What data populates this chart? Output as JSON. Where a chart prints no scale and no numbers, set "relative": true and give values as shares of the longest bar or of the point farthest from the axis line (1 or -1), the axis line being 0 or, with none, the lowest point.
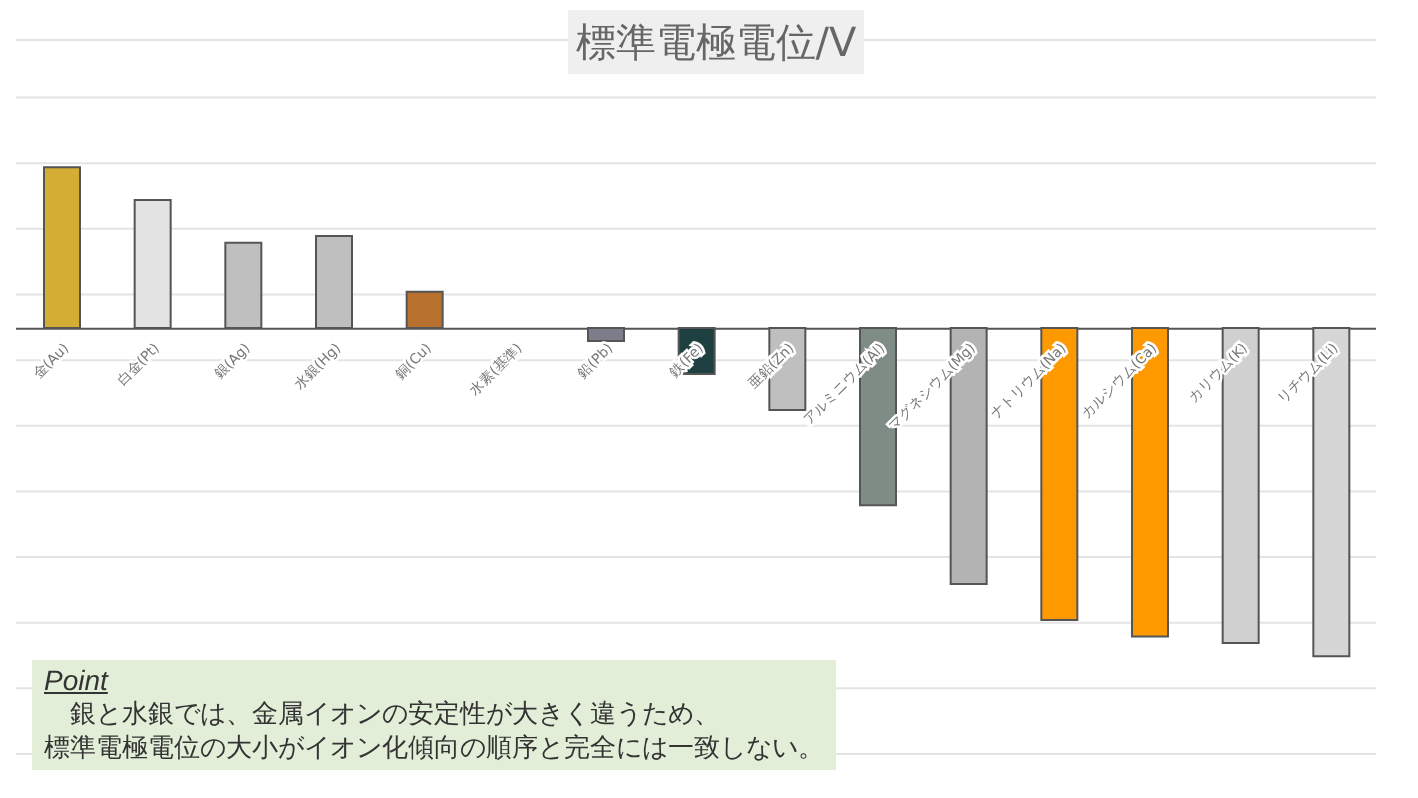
{
  "chart_data": {
    "type": "bar",
    "title": "標準電極電位/V",
    "relative": true,
    "grid": "y",
    "categories": [
      "金(Au)",
      "白金(Pt)",
      "銀(Ag)",
      "水銀(Hg)",
      "銅(Cu)",
      "水素(基準)",
      "鉛(Pb)",
      "鉄(Fe)",
      "亜鉛(Zn)",
      "アルミニウム(Al)",
      "マグネシウム(Mg)",
      "ナトリウム(Na)",
      "カルシウム(Ca)",
      "カリウム(K)",
      "リチウム(Li)"
    ],
    "values": [
      0.49,
      0.39,
      0.26,
      0.28,
      0.11,
      0,
      -0.04,
      -0.14,
      -0.25,
      -0.54,
      -0.78,
      -0.89,
      -0.94,
      -0.96,
      -1
    ],
    "colors": [
      "#d4ad35",
      "#e3e3e3",
      "#bfbfbf",
      "#bfbfbf",
      "#b8702f",
      "#bfbfbf",
      "#7c7c8a",
      "#1e4040",
      "#bfbfbf",
      "#7e8c85",
      "#b3b3b3",
      "#ff9900",
      "#ff9900",
      "#d0d0d0",
      "#d6d6d6"
    ],
    "annotations": [
      "Point",
      "　銀と水銀では、金属イオンの安定性が大きく違うため、",
      "標準電極電位の大小がイオン化傾向の順序と完全には一致しない。"
    ]
  }
}
